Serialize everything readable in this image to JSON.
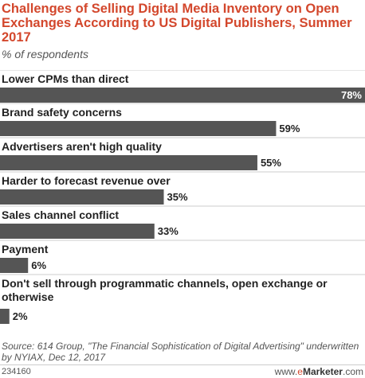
{
  "chart_data": {
    "type": "bar",
    "orientation": "horizontal",
    "title": "Challenges of Selling Digital Media Inventory on Open Exchanges According to US Digital Publishers, Summer 2017",
    "subtitle": "% of respondents",
    "categories": [
      "Lower CPMs than direct",
      "Brand safety concerns",
      "Advertisers aren't high quality",
      "Harder to forecast revenue over",
      "Sales channel conflict",
      "Payment",
      "Don't sell through programmatic channels, open exchange or otherwise"
    ],
    "values": [
      78,
      59,
      55,
      35,
      33,
      6,
      2
    ],
    "value_labels": [
      "78%",
      "59%",
      "55%",
      "35%",
      "33%",
      "6%",
      "2%"
    ],
    "xlim": [
      0,
      78
    ],
    "bar_color": "#555555",
    "grid": false,
    "legend": "none"
  },
  "source": "Source: 614 Group, \"The Financial Sophistication of Digital Advertising\" underwritten by NYIAX, Dec 12, 2017",
  "footer": {
    "chart_id": "234160",
    "brand_prefix": "www.",
    "brand_e": "e",
    "brand_name": "Marketer",
    "brand_suffix": ".com"
  },
  "colors": {
    "title": "#d3472c",
    "bar": "#555555",
    "divider": "#cccccc"
  }
}
